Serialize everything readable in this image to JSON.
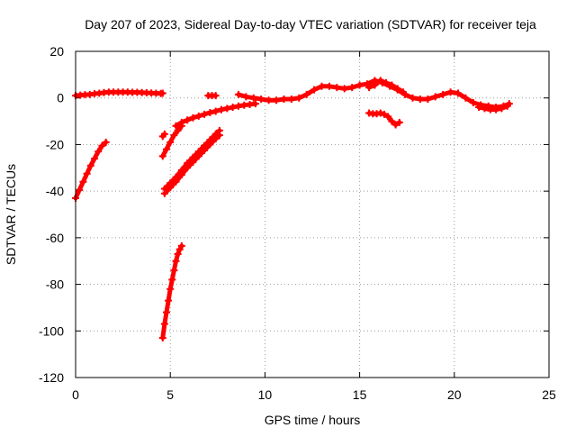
{
  "chart_data": {
    "type": "scatter",
    "title": "Day 207 of 2023, Sidereal Day-to-day VTEC variation (SDTVAR) for receiver teja",
    "xlabel": "GPS time / hours",
    "ylabel": "SDTVAR / TECUs",
    "xlim": [
      0,
      25
    ],
    "ylim": [
      -120,
      20
    ],
    "xticks": [
      0,
      5,
      10,
      15,
      20,
      25
    ],
    "yticks": [
      20,
      0,
      -20,
      -40,
      -60,
      -80,
      -100,
      -120
    ],
    "xtick_labels": [
      "0",
      "5",
      "10",
      "15",
      "20",
      "25"
    ],
    "ytick_labels": [
      "20",
      "0",
      "-20",
      "-40",
      "-60",
      "-80",
      "-100",
      "-120"
    ],
    "grid": true,
    "marker": "+",
    "series_color": "#ff0000",
    "series": [
      {
        "x": [
          0.0,
          0.2,
          0.4,
          0.6,
          0.8,
          1.0,
          1.2,
          1.4,
          1.6
        ],
        "y": [
          -43.0,
          -39.5,
          -36.0,
          -32.5,
          -29.0,
          -26.0,
          -23.0,
          -20.5,
          -19.0
        ]
      },
      {
        "x": [
          0.0,
          0.25,
          0.5,
          0.75,
          1.0,
          1.25,
          1.5,
          1.75,
          2.0,
          2.25,
          2.5,
          2.75,
          3.0,
          3.25,
          3.5,
          3.75,
          4.0,
          4.25,
          4.5,
          4.6
        ],
        "y": [
          1.0,
          1.2,
          1.4,
          1.5,
          1.8,
          2.0,
          2.3,
          2.5,
          2.5,
          2.5,
          2.5,
          2.5,
          2.4,
          2.4,
          2.3,
          2.2,
          2.1,
          2.0,
          1.9,
          2.0
        ]
      },
      {
        "x": [
          4.6,
          4.7
        ],
        "y": [
          -16.5,
          -15.5
        ]
      },
      {
        "x": [
          4.6,
          4.8,
          5.0,
          5.2,
          5.4,
          5.6
        ],
        "y": [
          -25.0,
          -22.0,
          -19.0,
          -16.0,
          -14.0,
          -12.0
        ]
      },
      {
        "x": [
          4.6,
          4.7,
          4.8,
          4.9,
          5.0,
          5.1,
          5.2,
          5.3,
          5.4,
          5.5,
          5.6
        ],
        "y": [
          -103.0,
          -97.0,
          -92.0,
          -87.0,
          -82.0,
          -78.0,
          -74.0,
          -70.0,
          -67.0,
          -65.0,
          -63.5
        ]
      },
      {
        "x": [
          4.7,
          5.0,
          5.3,
          5.6,
          5.9,
          6.2,
          6.5,
          6.8,
          7.1,
          7.4,
          7.6
        ],
        "y": [
          -39.0,
          -36.5,
          -34.0,
          -31.0,
          -28.0,
          -25.5,
          -23.0,
          -20.5,
          -18.0,
          -15.5,
          -14.0
        ]
      },
      {
        "x": [
          4.7,
          5.0,
          5.3,
          5.6,
          5.9,
          6.2,
          6.5,
          6.8,
          7.1,
          7.4,
          7.6
        ],
        "y": [
          -41.0,
          -38.5,
          -36.0,
          -33.0,
          -30.0,
          -27.5,
          -25.0,
          -22.5,
          -20.0,
          -17.5,
          -16.0
        ]
      },
      {
        "x": [
          5.3,
          5.6,
          5.9,
          6.2,
          6.5,
          6.8,
          7.1,
          7.4,
          7.7,
          8.0,
          8.3,
          8.6,
          8.9,
          9.2,
          9.5
        ],
        "y": [
          -12.0,
          -10.5,
          -9.5,
          -8.5,
          -7.8,
          -7.0,
          -6.3,
          -5.7,
          -5.0,
          -4.5,
          -4.0,
          -3.5,
          -3.1,
          -2.8,
          -2.5
        ]
      },
      {
        "x": [
          7.0,
          7.2,
          7.4
        ],
        "y": [
          1.0,
          1.0,
          1.0
        ]
      },
      {
        "x": [
          8.6,
          9.0,
          9.4,
          9.8,
          10.2,
          10.6,
          11.0,
          11.4,
          11.8,
          12.2,
          12.6,
          13.0,
          13.4,
          13.8,
          14.2,
          14.6,
          15.0,
          15.4,
          15.8,
          16.2,
          16.6,
          17.0,
          17.4,
          17.8,
          18.2,
          18.6,
          19.0,
          19.4,
          19.8,
          20.2,
          20.6,
          21.0,
          21.4,
          21.8,
          22.2,
          22.6,
          22.9
        ],
        "y": [
          1.5,
          0.5,
          0.0,
          -0.5,
          -1.0,
          -1.0,
          -0.5,
          -0.5,
          0.0,
          1.5,
          3.5,
          5.0,
          5.0,
          4.5,
          4.0,
          4.5,
          5.5,
          6.0,
          7.5,
          6.5,
          5.0,
          3.5,
          1.5,
          0.0,
          -0.5,
          -0.5,
          0.5,
          1.5,
          2.5,
          2.0,
          0.0,
          -2.0,
          -3.0,
          -3.5,
          -4.0,
          -3.5,
          -2.5
        ]
      },
      {
        "x": [
          15.5,
          15.8,
          16.1,
          16.4,
          16.7,
          17.0,
          17.3
        ],
        "y": [
          4.5,
          5.5,
          7.5,
          6.5,
          5.5,
          4.0,
          2.5
        ]
      },
      {
        "x": [
          15.5,
          15.7,
          15.9,
          16.1,
          16.3,
          16.5,
          16.7,
          16.9,
          17.1
        ],
        "y": [
          -6.5,
          -6.8,
          -6.8,
          -6.5,
          -7.0,
          -8.0,
          -10.0,
          -11.5,
          -10.5
        ]
      },
      {
        "x": [
          21.3,
          21.6,
          21.9,
          22.2,
          22.5,
          22.8
        ],
        "y": [
          -4.0,
          -4.5,
          -5.0,
          -5.0,
          -4.5,
          -3.5
        ]
      }
    ]
  }
}
